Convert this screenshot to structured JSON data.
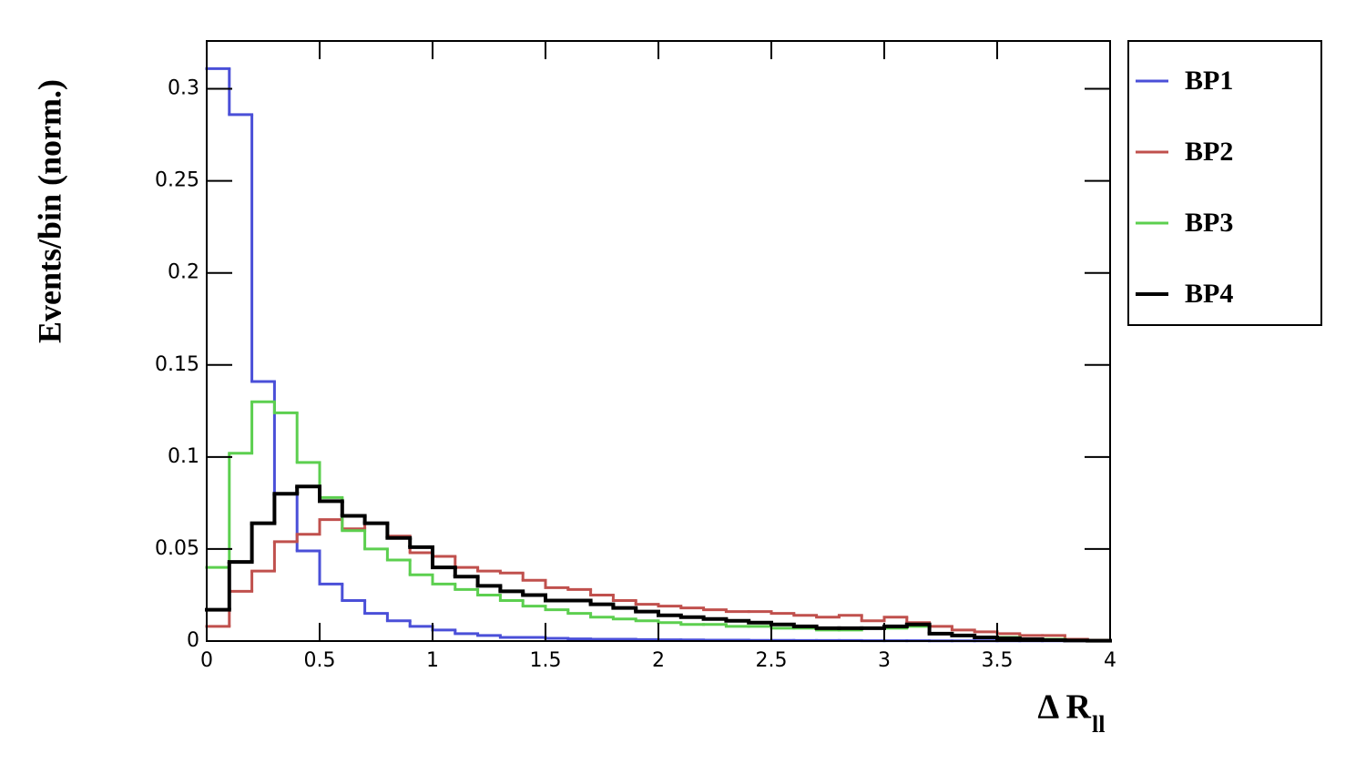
{
  "chart_data": {
    "type": "histogram",
    "ylabel": "Events/bin (norm.)",
    "xlabel": "Δ R",
    "xlabel_sub": "ll",
    "bins": [
      0,
      0.1,
      0.2,
      0.3,
      0.4,
      0.5,
      0.6,
      0.7,
      0.8,
      0.9,
      1,
      1.1,
      1.2,
      1.3,
      1.4,
      1.5,
      1.6,
      1.7,
      1.8,
      1.9,
      2,
      2.1,
      2.2,
      2.3,
      2.4,
      2.5,
      2.6,
      2.7,
      2.8,
      2.9,
      3,
      3.1,
      3.2,
      3.3,
      3.4,
      3.5,
      3.6,
      3.7,
      3.8,
      3.9,
      4
    ],
    "xlim": [
      0,
      4
    ],
    "xticks": [
      0,
      0.5,
      1,
      1.5,
      2,
      2.5,
      3,
      3.5,
      4
    ],
    "ylim": [
      0,
      0.326
    ],
    "yticks": [
      0,
      0.05,
      0.1,
      0.15,
      0.2,
      0.25,
      0.3
    ],
    "legend": "outside-right",
    "series": [
      {
        "name": "BP1",
        "color": "#4a4fd8",
        "width": 3,
        "values": [
          0.311,
          0.286,
          0.141,
          0.08,
          0.049,
          0.031,
          0.022,
          0.015,
          0.011,
          0.008,
          0.006,
          0.004,
          0.003,
          0.002,
          0.002,
          0.0015,
          0.0012,
          0.001,
          0.001,
          0.0008,
          0.0007,
          0.0006,
          0.0005,
          0.0005,
          0.0004,
          0.0004,
          0.0003,
          0.0003,
          0.0003,
          0.0002,
          0.0002,
          0.0002,
          0.0001,
          0.0001,
          0.0001,
          0.0001,
          0.0001,
          0.0001,
          0.0001,
          0.0001
        ]
      },
      {
        "name": "BP2",
        "color": "#c0504d",
        "width": 3,
        "values": [
          0.008,
          0.027,
          0.038,
          0.054,
          0.058,
          0.066,
          0.061,
          0.064,
          0.057,
          0.048,
          0.046,
          0.04,
          0.038,
          0.037,
          0.033,
          0.029,
          0.028,
          0.025,
          0.022,
          0.02,
          0.019,
          0.018,
          0.017,
          0.016,
          0.016,
          0.015,
          0.014,
          0.013,
          0.014,
          0.011,
          0.013,
          0.01,
          0.008,
          0.006,
          0.005,
          0.004,
          0.003,
          0.003,
          0.001,
          0.0005
        ]
      },
      {
        "name": "BP3",
        "color": "#5ccf4f",
        "width": 3,
        "values": [
          0.04,
          0.102,
          0.13,
          0.124,
          0.097,
          0.078,
          0.06,
          0.05,
          0.044,
          0.036,
          0.031,
          0.028,
          0.025,
          0.022,
          0.019,
          0.017,
          0.015,
          0.013,
          0.012,
          0.011,
          0.01,
          0.009,
          0.009,
          0.008,
          0.008,
          0.007,
          0.007,
          0.006,
          0.006,
          0.007,
          0.007,
          0.008,
          0.004,
          0.003,
          0.002,
          0.002,
          0.001,
          0.001,
          0.0005,
          0.0003
        ]
      },
      {
        "name": "BP4",
        "color": "#000000",
        "width": 4,
        "values": [
          0.017,
          0.043,
          0.064,
          0.08,
          0.084,
          0.076,
          0.068,
          0.064,
          0.056,
          0.051,
          0.04,
          0.035,
          0.03,
          0.027,
          0.025,
          0.022,
          0.022,
          0.02,
          0.018,
          0.016,
          0.014,
          0.013,
          0.012,
          0.011,
          0.01,
          0.009,
          0.008,
          0.007,
          0.007,
          0.007,
          0.008,
          0.009,
          0.004,
          0.003,
          0.002,
          0.0015,
          0.001,
          0.0005,
          0.0003,
          0.0002
        ]
      }
    ]
  }
}
